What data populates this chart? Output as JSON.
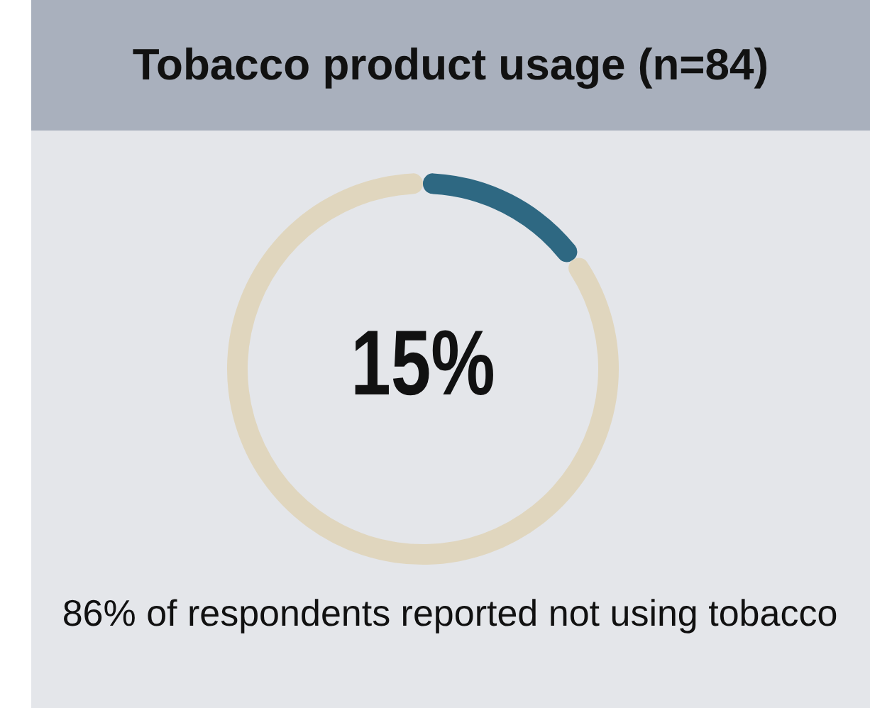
{
  "chart_data": {
    "type": "donut",
    "title": "Tobacco product usage (n=84)",
    "categories": [
      null,
      null
    ],
    "values": [
      15,
      85
    ],
    "colors": [
      "#2e6882",
      "#e0d6be"
    ],
    "value_labels": [
      "15%",
      null
    ],
    "annotations": [
      "86% of respondents reported not using tobacco"
    ]
  }
}
